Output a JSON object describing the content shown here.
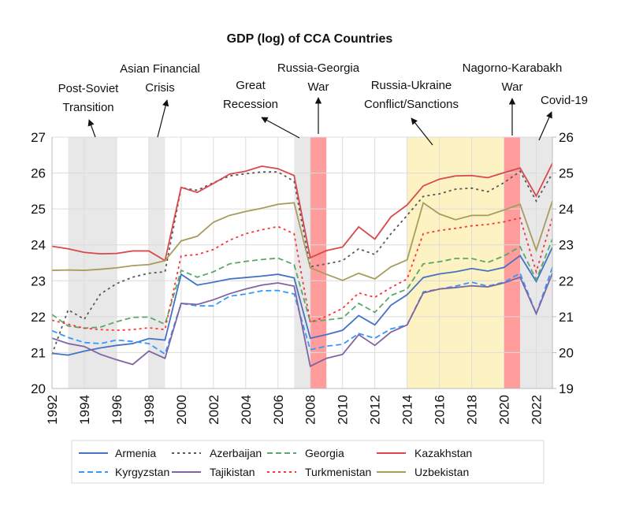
{
  "chart_data": {
    "type": "line",
    "title": "GDP (log) of CCA Countries",
    "xlabel": "",
    "ylabel": "",
    "xlim": [
      1992,
      2023
    ],
    "ylim": [
      20,
      27
    ],
    "y2lim": [
      19,
      26
    ],
    "grid": true,
    "legend_placement": "bottom",
    "x_ticks": [
      "1992",
      "1994",
      "1996",
      "1998",
      "2000",
      "2002",
      "2004",
      "2006",
      "2008",
      "2010",
      "2012",
      "2014",
      "2016",
      "2018",
      "2020",
      "2022"
    ],
    "y_ticks": [
      "20",
      "21",
      "22",
      "23",
      "24",
      "25",
      "26",
      "27"
    ],
    "y2_ticks": [
      "19",
      "20",
      "21",
      "22",
      "23",
      "24",
      "25",
      "26"
    ],
    "x": [
      1992,
      1993,
      1994,
      1995,
      1996,
      1997,
      1998,
      1999,
      2000,
      2001,
      2002,
      2003,
      2004,
      2005,
      2006,
      2007,
      2008,
      2009,
      2010,
      2011,
      2012,
      2013,
      2014,
      2015,
      2016,
      2017,
      2018,
      2019,
      2020,
      2021,
      2022,
      2023
    ],
    "series": [
      {
        "name": "Armenia",
        "color": "#4472c4",
        "dash": "solid",
        "values": [
          20.98,
          20.93,
          21.04,
          21.13,
          21.2,
          21.25,
          21.39,
          21.35,
          23.18,
          22.88,
          22.96,
          23.05,
          23.09,
          23.13,
          23.18,
          23.08,
          21.4,
          21.5,
          21.62,
          22.03,
          21.77,
          22.32,
          22.61,
          23.09,
          23.19,
          23.25,
          23.34,
          23.27,
          23.37,
          23.7,
          22.98,
          23.93
        ]
      },
      {
        "name": "Azerbaijan",
        "color": "#595959",
        "dash": "dotted",
        "values": [
          20.95,
          22.19,
          21.93,
          22.63,
          22.92,
          23.1,
          23.21,
          23.25,
          25.59,
          25.52,
          25.73,
          25.92,
          25.98,
          26.03,
          26.03,
          25.77,
          23.39,
          23.47,
          23.56,
          23.89,
          23.73,
          24.31,
          24.82,
          25.35,
          25.42,
          25.55,
          25.58,
          25.48,
          25.73,
          26.05,
          25.22,
          25.99
        ]
      },
      {
        "name": "Georgia",
        "color": "#5aa86a",
        "dash": "dashed",
        "values": [
          22.06,
          21.74,
          21.68,
          21.71,
          21.86,
          21.98,
          21.99,
          21.79,
          23.29,
          23.1,
          23.25,
          23.47,
          23.54,
          23.59,
          23.63,
          23.45,
          21.86,
          21.91,
          21.96,
          22.37,
          22.12,
          22.59,
          22.77,
          23.47,
          23.53,
          23.62,
          23.62,
          23.51,
          23.69,
          23.95,
          23.03,
          24.16
        ]
      },
      {
        "name": "Kazakhstan",
        "color": "#d9484a",
        "dash": "solid",
        "values": [
          23.96,
          23.89,
          23.79,
          23.75,
          23.76,
          23.83,
          23.83,
          23.56,
          25.6,
          25.46,
          25.71,
          25.97,
          26.05,
          26.19,
          26.12,
          25.93,
          23.64,
          23.84,
          23.94,
          24.5,
          24.16,
          24.78,
          25.11,
          25.64,
          25.83,
          25.92,
          25.93,
          25.87,
          26.01,
          26.14,
          25.36,
          26.27
        ]
      },
      {
        "name": "Kyrgyzstan",
        "color": "#3399ff",
        "dash": "dashed",
        "values": [
          21.61,
          21.42,
          21.28,
          21.25,
          21.35,
          21.31,
          21.25,
          20.96,
          22.37,
          22.3,
          22.3,
          22.57,
          22.63,
          22.72,
          22.73,
          22.63,
          21.08,
          21.18,
          21.23,
          21.53,
          21.4,
          21.66,
          21.77,
          22.69,
          22.77,
          22.85,
          22.96,
          22.85,
          22.96,
          23.21,
          22.08,
          23.37
        ]
      },
      {
        "name": "Tajikistan",
        "color": "#8064a2",
        "dash": "solid",
        "values": [
          21.4,
          21.25,
          21.17,
          20.95,
          20.8,
          20.67,
          21.04,
          20.84,
          22.37,
          22.34,
          22.47,
          22.64,
          22.77,
          22.88,
          22.94,
          22.85,
          20.62,
          20.84,
          20.95,
          21.5,
          21.2,
          21.57,
          21.77,
          22.66,
          22.77,
          22.81,
          22.86,
          22.83,
          22.94,
          23.1,
          22.08,
          23.21
        ]
      },
      {
        "name": "Turkmenistan",
        "color": "#ff3333",
        "dash": "dotted",
        "values": [
          21.9,
          21.79,
          21.68,
          21.64,
          21.62,
          21.64,
          21.69,
          21.64,
          23.69,
          23.73,
          23.87,
          24.13,
          24.31,
          24.42,
          24.51,
          24.31,
          21.84,
          22.01,
          22.23,
          22.66,
          22.54,
          22.81,
          23.05,
          24.31,
          24.4,
          24.46,
          24.53,
          24.57,
          24.64,
          24.75,
          23.25,
          24.75
        ]
      },
      {
        "name": "Uzbekistan",
        "color": "#a89c5c",
        "dash": "solid",
        "values": [
          23.29,
          23.3,
          23.29,
          23.32,
          23.36,
          23.42,
          23.45,
          23.56,
          24.11,
          24.24,
          24.63,
          24.82,
          24.93,
          25.02,
          25.13,
          25.17,
          23.36,
          23.18,
          23.01,
          23.21,
          23.05,
          23.39,
          23.58,
          25.17,
          24.86,
          24.7,
          24.82,
          24.82,
          24.97,
          25.13,
          23.85,
          25.22
        ]
      }
    ],
    "shaded_periods": [
      {
        "start": 1993,
        "end": 1996,
        "color": "#e8e8e8"
      },
      {
        "start": 1998,
        "end": 1999,
        "color": "#e8e8e8"
      },
      {
        "start": 2007,
        "end": 2008,
        "color": "#e8e8e8"
      },
      {
        "start": 2008,
        "end": 2009,
        "color": "#ff9c9c"
      },
      {
        "start": 2014,
        "end": 2020,
        "color": "#fdf2c2"
      },
      {
        "start": 2020,
        "end": 2021,
        "color": "#ff9c9c"
      },
      {
        "start": 2021,
        "end": 2023,
        "color": "#e8e8e8"
      }
    ],
    "annotations": [
      {
        "lines": [
          "Post-Soviet",
          "Transition"
        ]
      },
      {
        "lines": [
          "Asian Financial",
          "Crisis"
        ]
      },
      {
        "lines": [
          "Great",
          "Recession"
        ]
      },
      {
        "lines": [
          "Russia-Georgia",
          "War"
        ]
      },
      {
        "lines": [
          "Russia-Ukraine",
          "Conflict/Sanctions"
        ]
      },
      {
        "lines": [
          "Nagorno-Karabakh",
          "War"
        ]
      },
      {
        "lines": [
          "Covid-19"
        ]
      }
    ]
  }
}
